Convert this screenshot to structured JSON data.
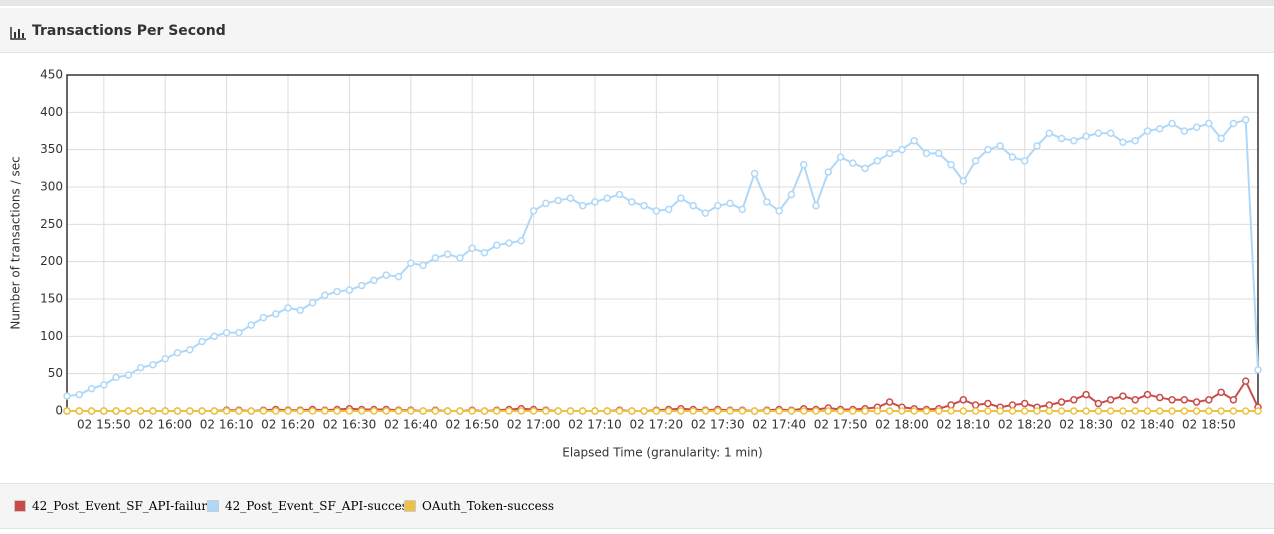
{
  "header": {
    "title": "Transactions Per Second"
  },
  "chart_data": {
    "type": "line",
    "x_label": "Elapsed Time (granularity: 1 min)",
    "y_label": "Number of transactions / sec",
    "xlim": [
      944,
      1138
    ],
    "ylim": [
      0,
      450
    ],
    "yticks": [
      0,
      50,
      100,
      150,
      200,
      250,
      300,
      350,
      400,
      450
    ],
    "xticks": [
      {
        "value": 950,
        "label": "02 15:50"
      },
      {
        "value": 960,
        "label": "02 16:00"
      },
      {
        "value": 970,
        "label": "02 16:10"
      },
      {
        "value": 980,
        "label": "02 16:20"
      },
      {
        "value": 990,
        "label": "02 16:30"
      },
      {
        "value": 1000,
        "label": "02 16:40"
      },
      {
        "value": 1010,
        "label": "02 16:50"
      },
      {
        "value": 1020,
        "label": "02 17:00"
      },
      {
        "value": 1030,
        "label": "02 17:10"
      },
      {
        "value": 1040,
        "label": "02 17:20"
      },
      {
        "value": 1050,
        "label": "02 17:30"
      },
      {
        "value": 1060,
        "label": "02 17:40"
      },
      {
        "value": 1070,
        "label": "02 17:50"
      },
      {
        "value": 1080,
        "label": "02 18:00"
      },
      {
        "value": 1090,
        "label": "02 18:10"
      },
      {
        "value": 1100,
        "label": "02 18:20"
      },
      {
        "value": 1110,
        "label": "02 18:30"
      },
      {
        "value": 1120,
        "label": "02 18:40"
      },
      {
        "value": 1130,
        "label": "02 18:50"
      }
    ],
    "grid": true,
    "x": [
      944,
      946,
      948,
      950,
      952,
      954,
      956,
      958,
      960,
      962,
      964,
      966,
      968,
      970,
      972,
      974,
      976,
      978,
      980,
      982,
      984,
      986,
      988,
      990,
      992,
      994,
      996,
      998,
      1000,
      1002,
      1004,
      1006,
      1008,
      1010,
      1012,
      1014,
      1016,
      1018,
      1020,
      1022,
      1024,
      1026,
      1028,
      1030,
      1032,
      1034,
      1036,
      1038,
      1040,
      1042,
      1044,
      1046,
      1048,
      1050,
      1052,
      1054,
      1056,
      1058,
      1060,
      1062,
      1064,
      1066,
      1068,
      1070,
      1072,
      1074,
      1076,
      1078,
      1080,
      1082,
      1084,
      1086,
      1088,
      1090,
      1092,
      1094,
      1096,
      1098,
      1100,
      1102,
      1104,
      1106,
      1108,
      1110,
      1112,
      1114,
      1116,
      1118,
      1120,
      1122,
      1124,
      1126,
      1128,
      1130,
      1132,
      1134,
      1136,
      1138
    ],
    "series": [
      {
        "name": "42_Post_Event_SF_API-failure",
        "color": "#cb4b4b",
        "values": [
          0,
          0,
          0,
          0,
          0,
          0,
          0,
          0,
          0,
          0,
          0,
          0,
          0,
          1,
          1,
          0,
          1,
          2,
          1,
          1,
          2,
          1,
          2,
          3,
          2,
          2,
          2,
          1,
          1,
          0,
          1,
          0,
          0,
          1,
          0,
          1,
          2,
          3,
          2,
          1,
          0,
          0,
          0,
          0,
          0,
          1,
          0,
          0,
          1,
          2,
          3,
          2,
          1,
          2,
          1,
          1,
          0,
          1,
          2,
          1,
          3,
          2,
          4,
          2,
          2,
          3,
          5,
          12,
          5,
          3,
          2,
          3,
          8,
          15,
          8,
          10,
          5,
          8,
          10,
          5,
          8,
          12,
          15,
          22,
          10,
          15,
          20,
          15,
          22,
          18,
          15,
          15,
          12,
          15,
          25,
          15,
          40,
          5
        ]
      },
      {
        "name": "42_Post_Event_SF_API-success",
        "color": "#afd8f8",
        "values": [
          20,
          22,
          30,
          35,
          45,
          48,
          58,
          62,
          70,
          78,
          82,
          93,
          100,
          105,
          105,
          115,
          125,
          130,
          138,
          135,
          145,
          155,
          160,
          162,
          168,
          175,
          182,
          180,
          198,
          195,
          205,
          210,
          205,
          218,
          212,
          222,
          225,
          228,
          268,
          278,
          282,
          285,
          275,
          280,
          285,
          290,
          280,
          275,
          268,
          270,
          285,
          275,
          265,
          275,
          278,
          270,
          318,
          280,
          268,
          290,
          330,
          275,
          320,
          340,
          332,
          325,
          335,
          345,
          350,
          362,
          345,
          345,
          330,
          308,
          335,
          350,
          355,
          340,
          335,
          355,
          372,
          365,
          362,
          368,
          372,
          372,
          360,
          362,
          375,
          378,
          385,
          375,
          380,
          385,
          365,
          385,
          390,
          55
        ]
      },
      {
        "name": "OAuth_Token-success",
        "color": "#edc240",
        "values": [
          0,
          0,
          0,
          0,
          0,
          0,
          0,
          0,
          0,
          0,
          0,
          0,
          0,
          0,
          0,
          0,
          0,
          0,
          0,
          0,
          0,
          0,
          0,
          0,
          0,
          0,
          0,
          0,
          0,
          0,
          0,
          0,
          0,
          0,
          0,
          0,
          0,
          0,
          0,
          0,
          0,
          0,
          0,
          0,
          0,
          0,
          0,
          0,
          0,
          0,
          0,
          0,
          0,
          0,
          0,
          0,
          0,
          0,
          0,
          0,
          0,
          0,
          0,
          0,
          0,
          0,
          0,
          0,
          0,
          0,
          0,
          0,
          0,
          0,
          0,
          0,
          0,
          0,
          0,
          0,
          0,
          0,
          0,
          0,
          0,
          0,
          0,
          0,
          0,
          0,
          0,
          0,
          0,
          0,
          0,
          0,
          0,
          0
        ]
      }
    ]
  }
}
